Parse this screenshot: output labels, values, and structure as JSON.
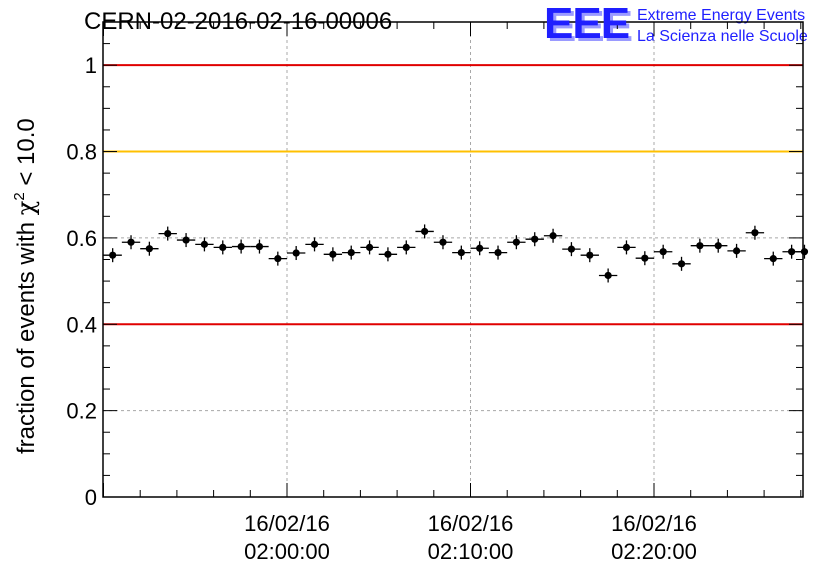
{
  "title": "CERN-02-2016-02-16-00006",
  "logo": {
    "mark": "EEE",
    "line1": "Extreme Energy Events",
    "line2": "La Scienza nelle Scuole",
    "color": "#1f1fff"
  },
  "chart_data": {
    "type": "scatter",
    "title": "CERN-02-2016-02-16-00006",
    "ylabel": "fraction of events with χ² < 10.0",
    "ylabel_main": "fraction of events with ",
    "ylabel_chi": "χ",
    "ylabel_sup": "2",
    "ylabel_tail": " < 10.0",
    "ylim": [
      0,
      1.1
    ],
    "yticks": [
      "0",
      "0.2",
      "0.4",
      "0.6",
      "0.8",
      "1"
    ],
    "ytick_values": [
      0,
      0.2,
      0.4,
      0.6,
      0.8,
      1.0
    ],
    "xlim_minutes": [
      -10,
      28.3
    ],
    "xticks": [
      {
        "date": "16/02/16",
        "time": "02:00:00",
        "minute": 0
      },
      {
        "date": "16/02/16",
        "time": "02:10:00",
        "minute": 10
      },
      {
        "date": "16/02/16",
        "time": "02:20:00",
        "minute": 20
      }
    ],
    "grid": true,
    "reference_lines": [
      {
        "y": 1.0,
        "color": "#e00000"
      },
      {
        "y": 0.8,
        "color": "#ffc000"
      },
      {
        "y": 0.4,
        "color": "#e00000"
      }
    ],
    "series": [
      {
        "marker_color": "#000000",
        "bin_width_minutes": 1.0,
        "x_minutes": [
          -9.5,
          -8.5,
          -7.5,
          -6.5,
          -5.5,
          -4.5,
          -3.5,
          -2.5,
          -1.5,
          -0.5,
          0.5,
          1.5,
          2.5,
          3.5,
          4.5,
          5.5,
          6.5,
          7.5,
          8.5,
          9.5,
          10.5,
          11.5,
          12.5,
          13.5,
          14.5,
          15.5,
          16.5,
          17.5,
          18.5,
          19.5,
          20.5,
          21.5,
          22.5,
          23.5,
          24.5,
          25.5,
          26.5,
          27.5,
          28.2
        ],
        "y": [
          0.56,
          0.59,
          0.575,
          0.61,
          0.595,
          0.585,
          0.578,
          0.58,
          0.58,
          0.552,
          0.565,
          0.585,
          0.562,
          0.566,
          0.578,
          0.562,
          0.578,
          0.615,
          0.59,
          0.566,
          0.576,
          0.566,
          0.59,
          0.597,
          0.605,
          0.574,
          0.56,
          0.513,
          0.578,
          0.553,
          0.568,
          0.54,
          0.582,
          0.582,
          0.57,
          0.612,
          0.552,
          0.568,
          0.568
        ]
      }
    ]
  }
}
